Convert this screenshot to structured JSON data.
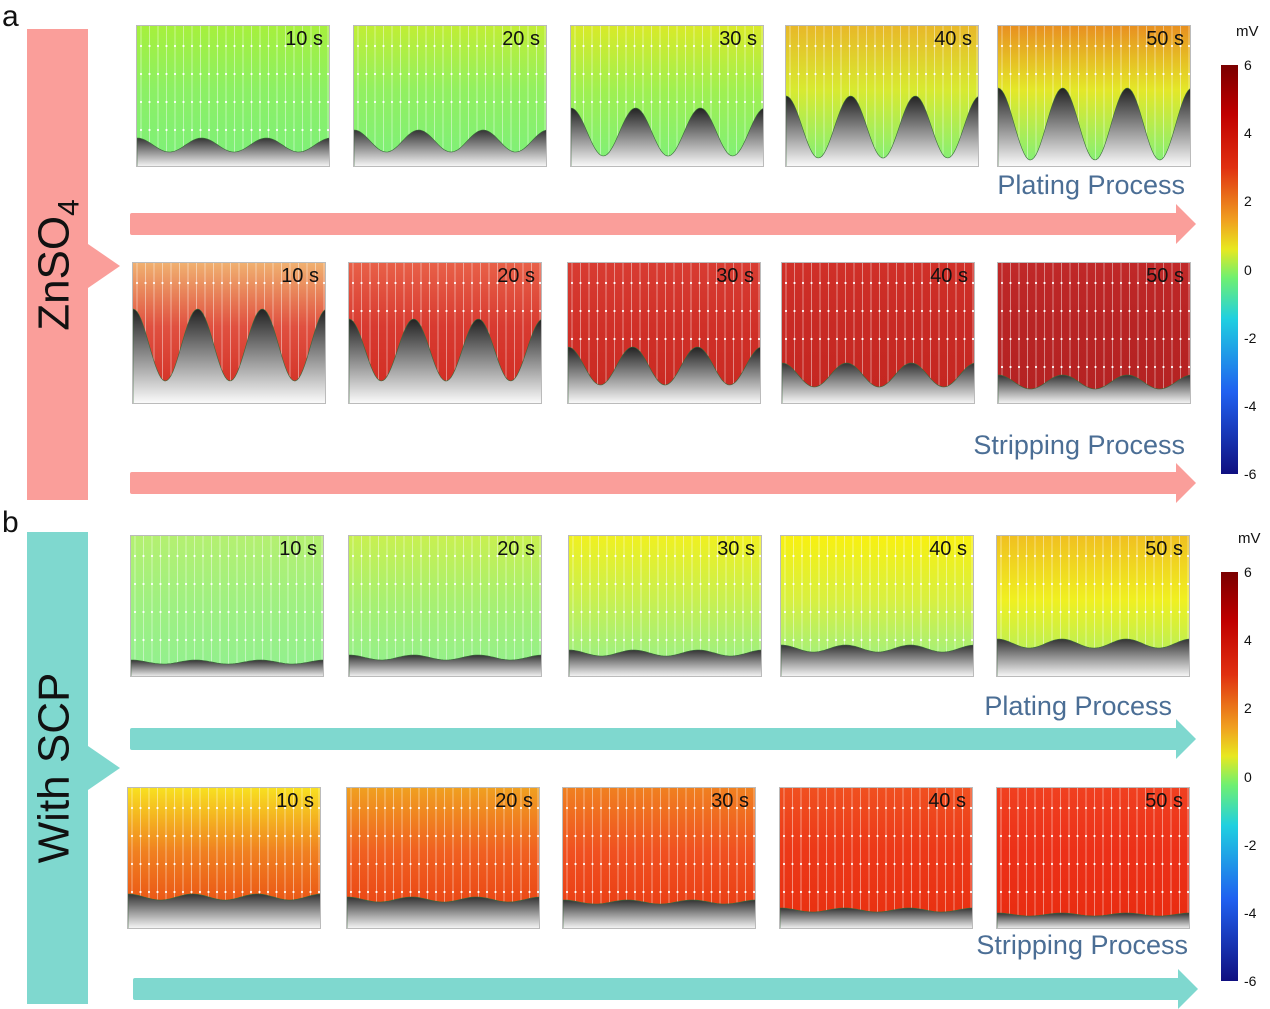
{
  "sections": [
    {
      "letter": "a",
      "side_label": "ZnSO",
      "side_sub": "4",
      "color": "#fa9e9a",
      "rows": [
        {
          "process": "Plating Process",
          "panels": [
            {
              "time": "10 s",
              "colors": [
                "#a6f03c",
                "#8cf064",
                "#7cf07c"
              ]
            },
            {
              "time": "20 s",
              "colors": [
                "#c0ee34",
                "#92f060",
                "#7cf07c"
              ]
            },
            {
              "time": "30 s",
              "colors": [
                "#d8ea28",
                "#a0f050",
                "#7cf07c"
              ]
            },
            {
              "time": "40 s",
              "colors": [
                "#e8b828",
                "#d8ea30",
                "#7cf07c"
              ]
            },
            {
              "time": "50 s",
              "colors": [
                "#e89020",
                "#e4e828",
                "#7cf07c"
              ]
            }
          ]
        },
        {
          "process": "Stripping Process",
          "panels": [
            {
              "time": "10 s",
              "colors": [
                "#f0b070",
                "#e05040",
                "#d02a20"
              ]
            },
            {
              "time": "20 s",
              "colors": [
                "#e86048",
                "#d83a30",
                "#d02a20"
              ]
            },
            {
              "time": "30 s",
              "colors": [
                "#d83c32",
                "#d03028",
                "#c82820"
              ]
            },
            {
              "time": "40 s",
              "colors": [
                "#d03028",
                "#c82a24",
                "#c42620"
              ]
            },
            {
              "time": "50 s",
              "colors": [
                "#c02828",
                "#b82424",
                "#b42222"
              ]
            }
          ]
        }
      ]
    },
    {
      "letter": "b",
      "side_label": "With SCP",
      "side_sub": "",
      "color": "#7fd8cf",
      "rows": [
        {
          "process": "Plating Process",
          "panels": [
            {
              "time": "10 s",
              "colors": [
                "#b4f070",
                "#a0f080",
                "#90f090"
              ]
            },
            {
              "time": "20 s",
              "colors": [
                "#c8f050",
                "#a8f070",
                "#90f090"
              ]
            },
            {
              "time": "30 s",
              "colors": [
                "#f0f020",
                "#c8f050",
                "#90f090"
              ]
            },
            {
              "time": "40 s",
              "colors": [
                "#f8f010",
                "#d8f040",
                "#90f090"
              ]
            },
            {
              "time": "50 s",
              "colors": [
                "#f0c020",
                "#f0f020",
                "#a0f070"
              ]
            }
          ]
        },
        {
          "process": "Stripping Process",
          "panels": [
            {
              "time": "10 s",
              "colors": [
                "#f8e020",
                "#f08020",
                "#e84010"
              ]
            },
            {
              "time": "20 s",
              "colors": [
                "#f0a020",
                "#f06020",
                "#e83c10"
              ]
            },
            {
              "time": "30 s",
              "colors": [
                "#f08020",
                "#f05020",
                "#e83810"
              ]
            },
            {
              "time": "40 s",
              "colors": [
                "#f05020",
                "#ec3818",
                "#e83010"
              ]
            },
            {
              "time": "50 s",
              "colors": [
                "#f04020",
                "#ec3018",
                "#e82c10"
              ]
            }
          ]
        }
      ]
    }
  ],
  "colorbar": {
    "unit": "mV",
    "ticks": [
      "6",
      "4",
      "2",
      "0",
      "-2",
      "-4",
      "-6"
    ]
  }
}
